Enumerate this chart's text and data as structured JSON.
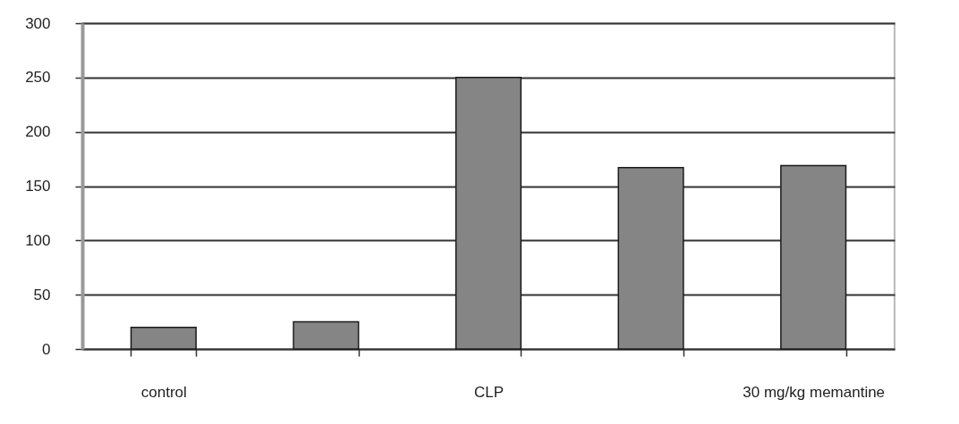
{
  "chart_data": {
    "type": "bar",
    "categories": [
      "control",
      null,
      "CLP",
      null,
      "30 mg/kg memantine"
    ],
    "values": [
      20,
      25,
      250,
      167,
      169
    ],
    "color": "#858585",
    "ylim": [
      0,
      300
    ],
    "yticks": [
      0,
      50,
      100,
      150,
      200,
      250,
      300
    ],
    "grid": "y"
  }
}
